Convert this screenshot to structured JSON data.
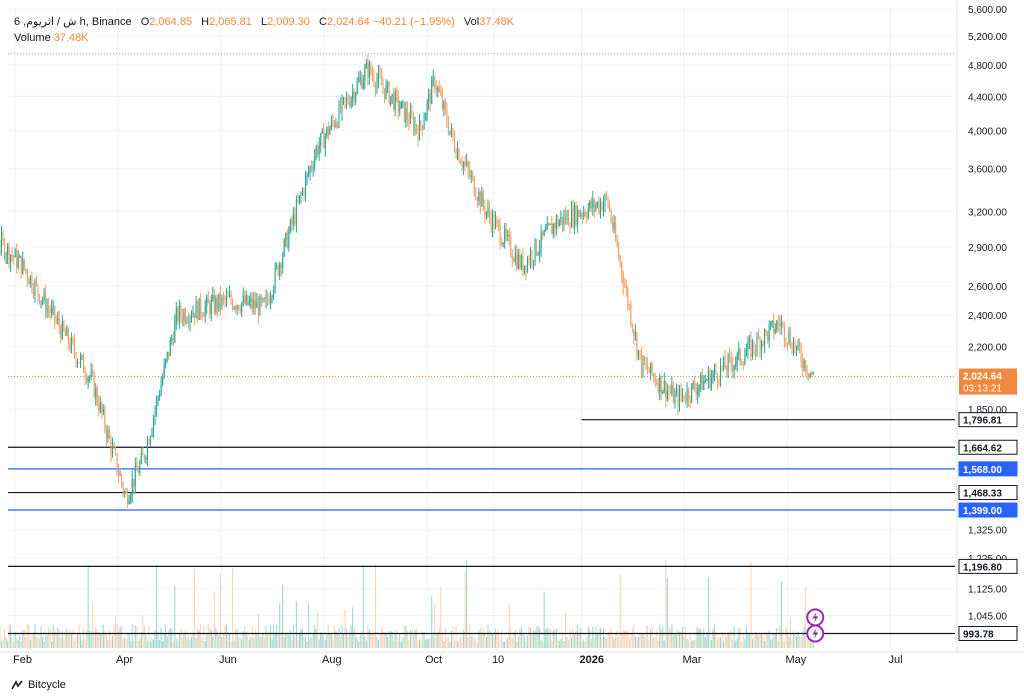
{
  "header": {
    "symbol": "6 ,ش / اثريوم h, Binance",
    "o_label": "O",
    "o_value": "2,064.85",
    "h_label": "H",
    "h_value": "2,065.81",
    "l_label": "L",
    "l_value": "2,009.30",
    "c_label": "C",
    "c_value": "2,024.64",
    "change": "−40.21 (−1.95%)",
    "vol_label": "Vol",
    "vol_value": "37.48K",
    "volume_label": "Volume",
    "volume_value": "37.48K"
  },
  "brand": {
    "name": "Bitcycle"
  },
  "colors": {
    "up": "#26a69a",
    "down": "#f0a060",
    "blue": "#2962ff",
    "line": "#131722",
    "price": "#f0883e"
  },
  "chart_data": {
    "type": "candlestick",
    "y_scale": "log",
    "ylim": [
      960,
      5650
    ],
    "y_ticks": [
      {
        "v": 5600,
        "t": "5,600.00"
      },
      {
        "v": 5200,
        "t": "5,200.00"
      },
      {
        "v": 4800,
        "t": "4,800.00"
      },
      {
        "v": 4400,
        "t": "4,400.00"
      },
      {
        "v": 4000,
        "t": "4,000.00"
      },
      {
        "v": 3600,
        "t": "3,600.00"
      },
      {
        "v": 3200,
        "t": "3,200.00"
      },
      {
        "v": 2900,
        "t": "2,900.00"
      },
      {
        "v": 2600,
        "t": "2,600.00"
      },
      {
        "v": 2400,
        "t": "2,400.00"
      },
      {
        "v": 2200,
        "t": "2,200.00"
      },
      {
        "v": 1850,
        "t": "1,850.00"
      },
      {
        "v": 1325,
        "t": "1,325.00"
      },
      {
        "v": 1225,
        "t": "1,225.00"
      },
      {
        "v": 1125,
        "t": "1,125.00"
      },
      {
        "v": 1045,
        "t": "1,045.00"
      }
    ],
    "x_labels": [
      "Feb",
      "Apr",
      "Jun",
      "Aug",
      "Oct",
      "10",
      "2026",
      "Mar",
      "May",
      "Jul"
    ],
    "current_price": {
      "value": 2024.64,
      "label": "2,024.64",
      "countdown": "03:13:21"
    },
    "horizontal_levels": [
      {
        "value": 1796.81,
        "label": "1,796.81",
        "color": "#131722",
        "start": "Jan 2026"
      },
      {
        "value": 1664.62,
        "label": "1,664.62",
        "color": "#131722",
        "start": "Jan 2025"
      },
      {
        "value": 1568.0,
        "label": "1,568.00",
        "color": "#2962ff",
        "start": "Jan 2025"
      },
      {
        "value": 1468.33,
        "label": "1,468.33",
        "color": "#131722",
        "start": "Jan 2025"
      },
      {
        "value": 1399.0,
        "label": "1,399.00",
        "color": "#2962ff",
        "start": "Jan 2025"
      },
      {
        "value": 1196.8,
        "label": "1,196.80",
        "color": "#131722",
        "start": "Jan 2025"
      },
      {
        "value": 993.78,
        "label": "993.78",
        "color": "#131722",
        "start": "Jan 2025"
      }
    ],
    "dotted_top": 4950,
    "price_path": [
      {
        "d": "Jan 2025",
        "p": 3250
      },
      {
        "d": "early Feb 2025",
        "p": 2750
      },
      {
        "d": "mid Mar 2025",
        "p": 2000
      },
      {
        "d": "early Apr 2025",
        "p": 1450
      },
      {
        "d": "mid Apr 2025",
        "p": 1620
      },
      {
        "d": "early May 2025",
        "p": 2400
      },
      {
        "d": "early Jun 2025",
        "p": 2500
      },
      {
        "d": "late Jun 2025",
        "p": 2450
      },
      {
        "d": "late Jul 2025",
        "p": 3800
      },
      {
        "d": "late Aug 2025",
        "p": 4750
      },
      {
        "d": "late Sep 2025",
        "p": 4000
      },
      {
        "d": "early Oct 2025",
        "p": 4600
      },
      {
        "d": "mid Oct 2025",
        "p": 3900
      },
      {
        "d": "early Nov 2025",
        "p": 3200
      },
      {
        "d": "late Nov 2025",
        "p": 2750
      },
      {
        "d": "mid Dec 2025",
        "p": 3100
      },
      {
        "d": "mid Jan 2026",
        "p": 3300
      },
      {
        "d": "early Feb 2026",
        "p": 2100
      },
      {
        "d": "late Feb 2026",
        "p": 1900
      },
      {
        "d": "early Apr 2026",
        "p": 2150
      },
      {
        "d": "late Apr 2026",
        "p": 2350
      },
      {
        "d": "mid May 2026",
        "p": 2025
      }
    ],
    "event_icons": 2
  }
}
